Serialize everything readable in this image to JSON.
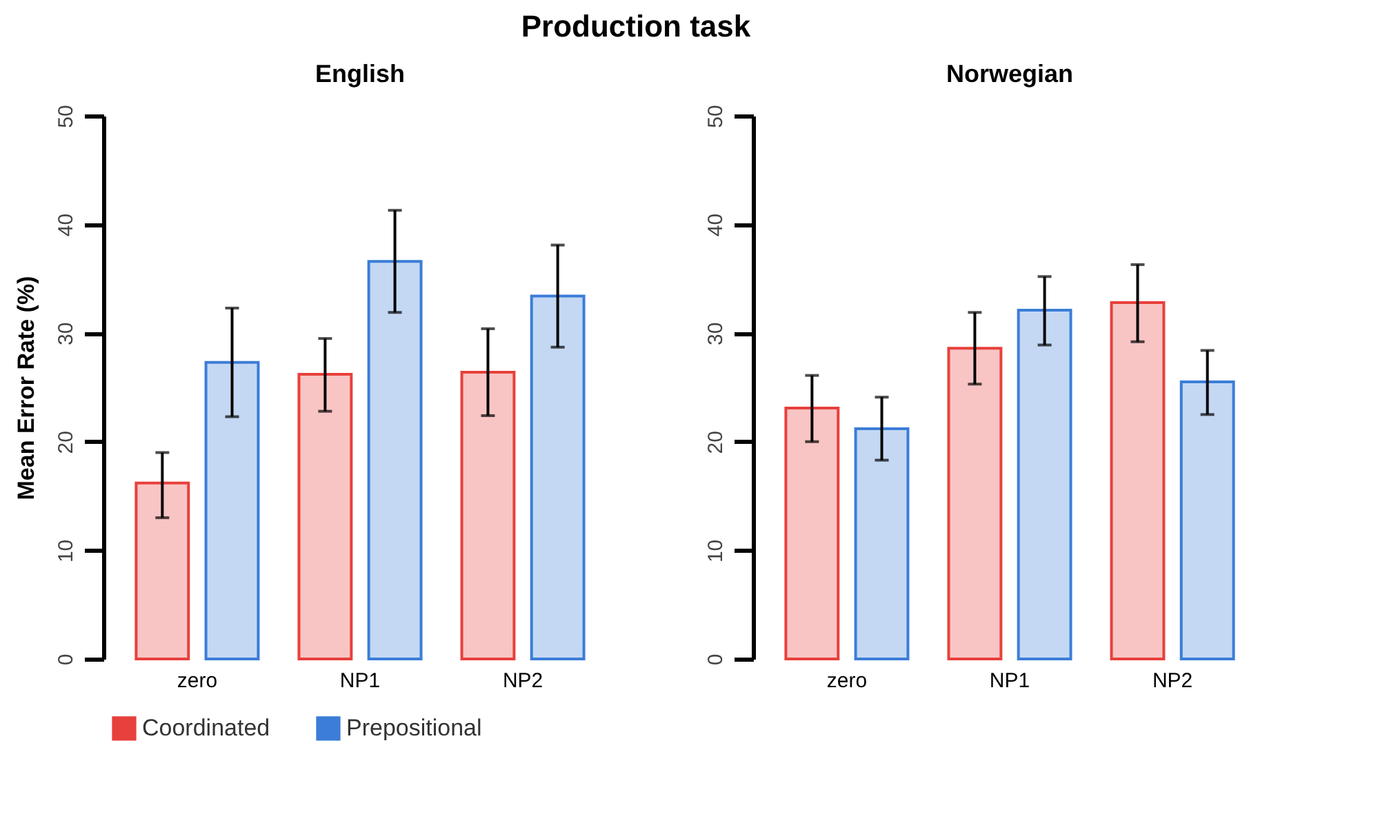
{
  "chart_data": [
    {
      "type": "bar",
      "title": "Production task",
      "subtitle": "English",
      "ylabel": "Mean Error Rate (%)",
      "categories": [
        "zero",
        "NP1",
        "NP2"
      ],
      "ylim": [
        0,
        50
      ],
      "yticks": [
        0,
        10,
        20,
        30,
        40,
        50
      ],
      "legend": "bottom",
      "series": [
        {
          "name": "Coordinated",
          "color": "#e8403c",
          "values": [
            16.2,
            26.2,
            26.4
          ],
          "errors": [
            [
              13.0,
              19.0
            ],
            [
              22.8,
              29.5
            ],
            [
              22.4,
              30.4
            ]
          ]
        },
        {
          "name": "Prepositional",
          "color": "#3b7dd8",
          "values": [
            27.3,
            36.6,
            33.4
          ],
          "errors": [
            [
              22.3,
              32.3
            ],
            [
              31.9,
              41.3
            ],
            [
              28.7,
              38.1
            ]
          ]
        }
      ]
    },
    {
      "type": "bar",
      "subtitle": "Norwegian",
      "categories": [
        "zero",
        "NP1",
        "NP2"
      ],
      "ylim": [
        0,
        50
      ],
      "yticks": [
        0,
        10,
        20,
        30,
        40,
        50
      ],
      "legend": "bottom",
      "series": [
        {
          "name": "Coordinated",
          "color": "#e8403c",
          "values": [
            23.1,
            28.6,
            32.8
          ],
          "errors": [
            [
              20.0,
              26.1
            ],
            [
              25.3,
              31.9
            ],
            [
              29.2,
              36.3
            ]
          ]
        },
        {
          "name": "Prepositional",
          "color": "#3b7dd8",
          "values": [
            21.2,
            32.1,
            25.5
          ],
          "errors": [
            [
              18.3,
              24.1
            ],
            [
              28.9,
              35.2
            ],
            [
              22.5,
              28.4
            ]
          ]
        }
      ]
    }
  ]
}
